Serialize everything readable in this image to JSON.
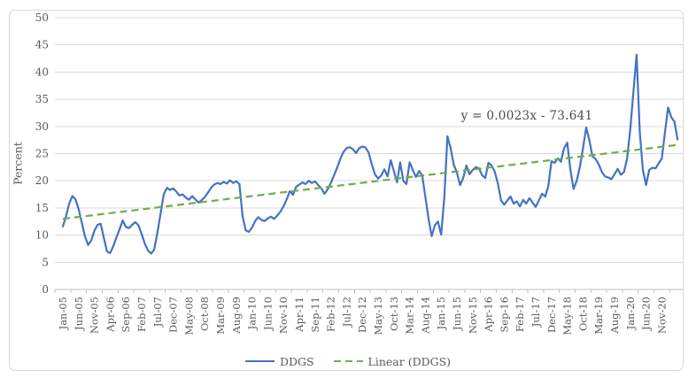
{
  "chart": {
    "y_axis_title": "Percent",
    "annotation_equation": "y = 0.0023x - 73.641",
    "legend": [
      {
        "label": "DDGS",
        "color": "#4472C4",
        "style": "solid"
      },
      {
        "label": "Linear (DDGS)",
        "color": "#70AD47",
        "style": "dashed"
      }
    ]
  },
  "chart_data": {
    "type": "line",
    "title": "",
    "xlabel": "",
    "ylabel": "Percent",
    "ylim": [
      0,
      50
    ],
    "y_ticks": [
      0,
      5,
      10,
      15,
      20,
      25,
      30,
      35,
      40,
      45,
      50
    ],
    "grid": "horizontal",
    "legend_position": "bottom",
    "x_start": "Jan-2005",
    "x_frequency": "monthly",
    "x_tick_interval_months": 5,
    "x_tick_labels": [
      "Jan-05",
      "Jun-05",
      "Nov-05",
      "Apr-06",
      "Sep-06",
      "Feb-07",
      "Jul-07",
      "Dec-07",
      "May-08",
      "Oct-08",
      "Mar-09",
      "Aug-09",
      "Jan-10",
      "Jun-10",
      "Nov-10",
      "Apr-11",
      "Sep-11",
      "Feb-12",
      "Jul-12",
      "Dec-12",
      "May-13",
      "Oct-13",
      "Mar-14",
      "Aug-14",
      "Jan-15",
      "Jun-15",
      "Nov-15",
      "Apr-16",
      "Sep-16",
      "Feb-17",
      "Jul-17",
      "Dec-17",
      "May-18",
      "Oct-18",
      "Mar-19",
      "Aug-19",
      "Jan-20",
      "Jun-20",
      "Nov-20"
    ],
    "series": [
      {
        "name": "DDGS",
        "color": "#4472C4",
        "values": [
          11.6,
          13.5,
          15.8,
          17.2,
          16.6,
          14.8,
          12.3,
          9.8,
          8.2,
          9.0,
          10.8,
          11.9,
          12.1,
          9.5,
          7.0,
          6.7,
          8.0,
          9.6,
          11.1,
          12.7,
          11.5,
          11.3,
          11.9,
          12.4,
          11.8,
          10.2,
          8.4,
          7.2,
          6.6,
          7.4,
          10.5,
          14.0,
          17.5,
          18.7,
          18.3,
          18.6,
          18.0,
          17.3,
          17.5,
          16.9,
          16.5,
          17.2,
          16.6,
          16.0,
          16.4,
          17.0,
          17.8,
          18.7,
          19.3,
          19.6,
          19.4,
          19.8,
          19.5,
          20.1,
          19.6,
          19.9,
          19.4,
          13.5,
          10.9,
          10.6,
          11.4,
          12.6,
          13.3,
          12.8,
          12.6,
          13.1,
          13.4,
          13.0,
          13.6,
          14.3,
          15.3,
          16.6,
          18.1,
          17.4,
          18.9,
          19.3,
          19.7,
          19.4,
          20.0,
          19.6,
          19.9,
          19.2,
          18.6,
          17.6,
          18.4,
          19.6,
          21.0,
          22.4,
          24.0,
          25.3,
          26.0,
          26.2,
          25.8,
          25.1,
          26.0,
          26.3,
          26.1,
          25.2,
          23.0,
          21.2,
          20.4,
          21.0,
          22.1,
          20.8,
          23.8,
          21.8,
          19.7,
          23.4,
          20.0,
          19.4,
          23.4,
          22.0,
          20.7,
          21.8,
          21.0,
          17.0,
          13.0,
          9.8,
          11.8,
          12.5,
          10.1,
          17.0,
          28.2,
          26.0,
          23.0,
          21.5,
          19.2,
          20.5,
          22.8,
          21.2,
          22.0,
          22.5,
          22.3,
          21.0,
          20.5,
          23.3,
          22.8,
          21.7,
          19.5,
          16.4,
          15.6,
          16.4,
          17.1,
          15.8,
          16.2,
          15.3,
          16.5,
          15.8,
          16.8,
          16.0,
          15.2,
          16.4,
          17.6,
          17.1,
          19.0,
          23.6,
          23.3,
          24.1,
          23.5,
          26.0,
          27.0,
          22.0,
          18.5,
          20.0,
          22.5,
          26.0,
          29.8,
          27.5,
          24.5,
          24.0,
          23.0,
          21.6,
          20.8,
          20.6,
          20.3,
          21.2,
          22.2,
          21.1,
          21.6,
          24.1,
          29.5,
          36.5,
          43.2,
          29.0,
          22.0,
          19.2,
          22.0,
          22.4,
          22.3,
          23.2,
          24.1,
          29.0,
          33.5,
          31.7,
          30.9,
          27.6
        ]
      }
    ],
    "trendline": {
      "name": "Linear (DDGS)",
      "color": "#70AD47",
      "equation": "y = 0.0023x - 73.641",
      "start_value": 13.0,
      "end_value": 26.6
    }
  }
}
